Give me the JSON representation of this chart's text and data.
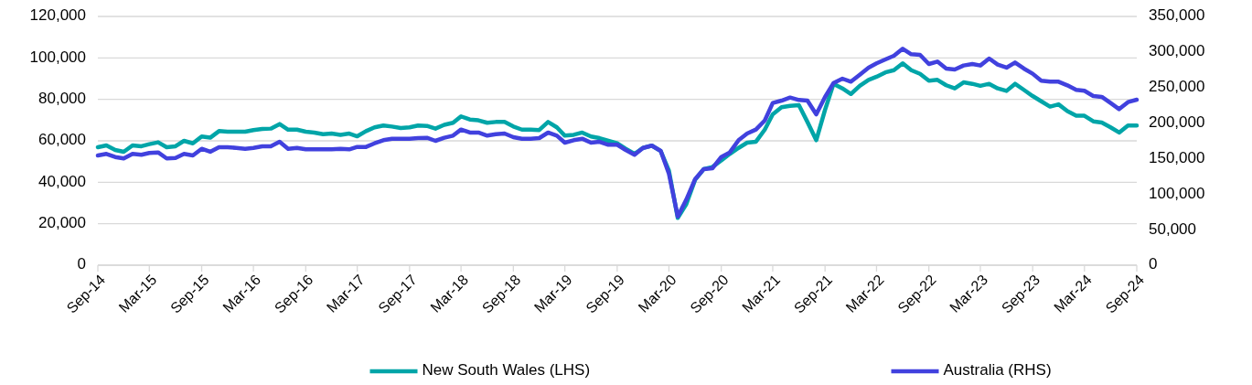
{
  "chart_data": {
    "type": "line",
    "x": [
      "2014-09",
      "2014-10",
      "2014-11",
      "2014-12",
      "2015-01",
      "2015-02",
      "2015-03",
      "2015-04",
      "2015-05",
      "2015-06",
      "2015-07",
      "2015-08",
      "2015-09",
      "2015-10",
      "2015-11",
      "2015-12",
      "2016-01",
      "2016-02",
      "2016-03",
      "2016-04",
      "2016-05",
      "2016-06",
      "2016-07",
      "2016-08",
      "2016-09",
      "2016-10",
      "2016-11",
      "2016-12",
      "2017-01",
      "2017-02",
      "2017-03",
      "2017-04",
      "2017-05",
      "2017-06",
      "2017-07",
      "2017-08",
      "2017-09",
      "2017-10",
      "2017-11",
      "2017-12",
      "2018-01",
      "2018-02",
      "2018-03",
      "2018-04",
      "2018-05",
      "2018-06",
      "2018-07",
      "2018-08",
      "2018-09",
      "2018-10",
      "2018-11",
      "2018-12",
      "2019-01",
      "2019-02",
      "2019-03",
      "2019-04",
      "2019-05",
      "2019-06",
      "2019-07",
      "2019-08",
      "2019-09",
      "2019-10",
      "2019-11",
      "2019-12",
      "2020-01",
      "2020-02",
      "2020-03",
      "2020-04",
      "2020-05",
      "2020-06",
      "2020-07",
      "2020-08",
      "2020-09",
      "2020-10",
      "2020-11",
      "2020-12",
      "2021-01",
      "2021-02",
      "2021-03",
      "2021-04",
      "2021-05",
      "2021-06",
      "2021-07",
      "2021-08",
      "2021-09",
      "2021-10",
      "2021-11",
      "2021-12",
      "2022-01",
      "2022-02",
      "2022-03",
      "2022-04",
      "2022-05",
      "2022-06",
      "2022-07",
      "2022-08",
      "2022-09",
      "2022-10",
      "2022-11",
      "2022-12",
      "2023-01",
      "2023-02",
      "2023-03",
      "2023-04",
      "2023-05",
      "2023-06",
      "2023-07",
      "2023-08",
      "2023-09",
      "2023-10",
      "2023-11",
      "2023-12",
      "2024-01",
      "2024-02",
      "2024-03",
      "2024-04",
      "2024-05",
      "2024-06",
      "2024-07",
      "2024-08",
      "2024-09"
    ],
    "series": [
      {
        "name": "New South Wales (LHS)",
        "color": "#00a5a8",
        "values": [
          56900,
          57800,
          55600,
          54700,
          57800,
          57400,
          58400,
          59300,
          56900,
          57400,
          60000,
          58800,
          62100,
          61500,
          64700,
          64400,
          64400,
          64400,
          65200,
          65700,
          65900,
          68100,
          65400,
          65400,
          64400,
          64000,
          63200,
          63500,
          62900,
          63500,
          62200,
          64700,
          66500,
          67400,
          66900,
          66200,
          66500,
          67400,
          67200,
          65900,
          67700,
          68700,
          71800,
          70300,
          69900,
          68700,
          69100,
          69100,
          66900,
          65400,
          65400,
          65200,
          69100,
          66500,
          62500,
          62900,
          64000,
          62100,
          61300,
          60000,
          58800,
          56200,
          53700,
          56600,
          57700,
          55100,
          45600,
          22800,
          29400,
          41200,
          46300,
          47400,
          50500,
          53700,
          56600,
          59100,
          59600,
          65400,
          72800,
          76200,
          76900,
          77200,
          69100,
          60300,
          75000,
          87500,
          85300,
          82600,
          86500,
          89400,
          90900,
          93000,
          94100,
          97400,
          94100,
          92300,
          89000,
          89400,
          86800,
          85300,
          88200,
          87500,
          86500,
          87500,
          85300,
          84100,
          87500,
          84600,
          81600,
          79100,
          76500,
          77600,
          74300,
          72100,
          72100,
          69400,
          68800,
          66500,
          64000,
          67400,
          67400
        ]
      },
      {
        "name": "Australia (RHS)",
        "color": "#4141de",
        "axis": "y2",
        "values": [
          154400,
          156600,
          152200,
          150200,
          156600,
          155300,
          157900,
          158700,
          150200,
          150900,
          156600,
          154400,
          163800,
          159600,
          166000,
          166000,
          165100,
          163800,
          165100,
          167300,
          167300,
          173700,
          163800,
          165100,
          163000,
          163000,
          163000,
          163000,
          163800,
          163000,
          166400,
          166400,
          171500,
          175900,
          178000,
          178000,
          178000,
          178900,
          179300,
          175000,
          179300,
          182300,
          190900,
          186600,
          186600,
          182300,
          184400,
          185300,
          180200,
          178000,
          178000,
          178900,
          186600,
          182300,
          172400,
          175900,
          178000,
          172400,
          173700,
          169500,
          169500,
          162100,
          155300,
          165100,
          168200,
          160900,
          128700,
          68600,
          92300,
          121000,
          135100,
          136400,
          152200,
          158700,
          175900,
          185300,
          190900,
          203700,
          228200,
          231600,
          235900,
          232500,
          231600,
          212300,
          236800,
          256500,
          262500,
          258200,
          268100,
          278000,
          284000,
          289500,
          294700,
          304600,
          296800,
          296000,
          283100,
          286500,
          276700,
          275400,
          281000,
          283100,
          281000,
          290800,
          282200,
          278000,
          285200,
          276700,
          269400,
          259500,
          258200,
          258200,
          253100,
          246700,
          245400,
          238100,
          236800,
          228200,
          219600,
          229500,
          232900
        ]
      }
    ],
    "xlim": [
      "2014-09",
      "2024-09"
    ],
    "xticks": [
      {
        "value": "2014-09",
        "label": "Sep-14"
      },
      {
        "value": "2015-03",
        "label": "Mar-15"
      },
      {
        "value": "2015-09",
        "label": "Sep-15"
      },
      {
        "value": "2016-03",
        "label": "Mar-16"
      },
      {
        "value": "2016-09",
        "label": "Sep-16"
      },
      {
        "value": "2017-03",
        "label": "Mar-17"
      },
      {
        "value": "2017-09",
        "label": "Sep-17"
      },
      {
        "value": "2018-03",
        "label": "Mar-18"
      },
      {
        "value": "2018-09",
        "label": "Sep-18"
      },
      {
        "value": "2019-03",
        "label": "Mar-19"
      },
      {
        "value": "2019-09",
        "label": "Sep-19"
      },
      {
        "value": "2020-03",
        "label": "Mar-20"
      },
      {
        "value": "2020-09",
        "label": "Sep-20"
      },
      {
        "value": "2021-03",
        "label": "Mar-21"
      },
      {
        "value": "2021-09",
        "label": "Sep-21"
      },
      {
        "value": "2022-03",
        "label": "Mar-22"
      },
      {
        "value": "2022-09",
        "label": "Sep-22"
      },
      {
        "value": "2023-03",
        "label": "Mar-23"
      },
      {
        "value": "2023-09",
        "label": "Sep-23"
      },
      {
        "value": "2024-03",
        "label": "Mar-24"
      },
      {
        "value": "2024-09",
        "label": "Sep-24"
      }
    ],
    "ylim": [
      0,
      120000
    ],
    "yticks": [
      {
        "value": 0,
        "label": "0"
      },
      {
        "value": 20000,
        "label": "20,000"
      },
      {
        "value": 40000,
        "label": "40,000"
      },
      {
        "value": 60000,
        "label": "60,000"
      },
      {
        "value": 80000,
        "label": "80,000"
      },
      {
        "value": 100000,
        "label": "100,000"
      },
      {
        "value": 120000,
        "label": "120,000"
      }
    ],
    "y2lim": [
      0,
      350000
    ],
    "y2ticks": [
      {
        "value": 0,
        "label": "0"
      },
      {
        "value": 50000,
        "label": "50,000"
      },
      {
        "value": 100000,
        "label": "100,000"
      },
      {
        "value": 150000,
        "label": "150,000"
      },
      {
        "value": 200000,
        "label": "200,000"
      },
      {
        "value": 250000,
        "label": "250,000"
      },
      {
        "value": 300000,
        "label": "300,000"
      },
      {
        "value": 350000,
        "label": "350,000"
      }
    ],
    "grid": "y",
    "legend": "bottom",
    "marker": "none",
    "line_style": "solid"
  }
}
